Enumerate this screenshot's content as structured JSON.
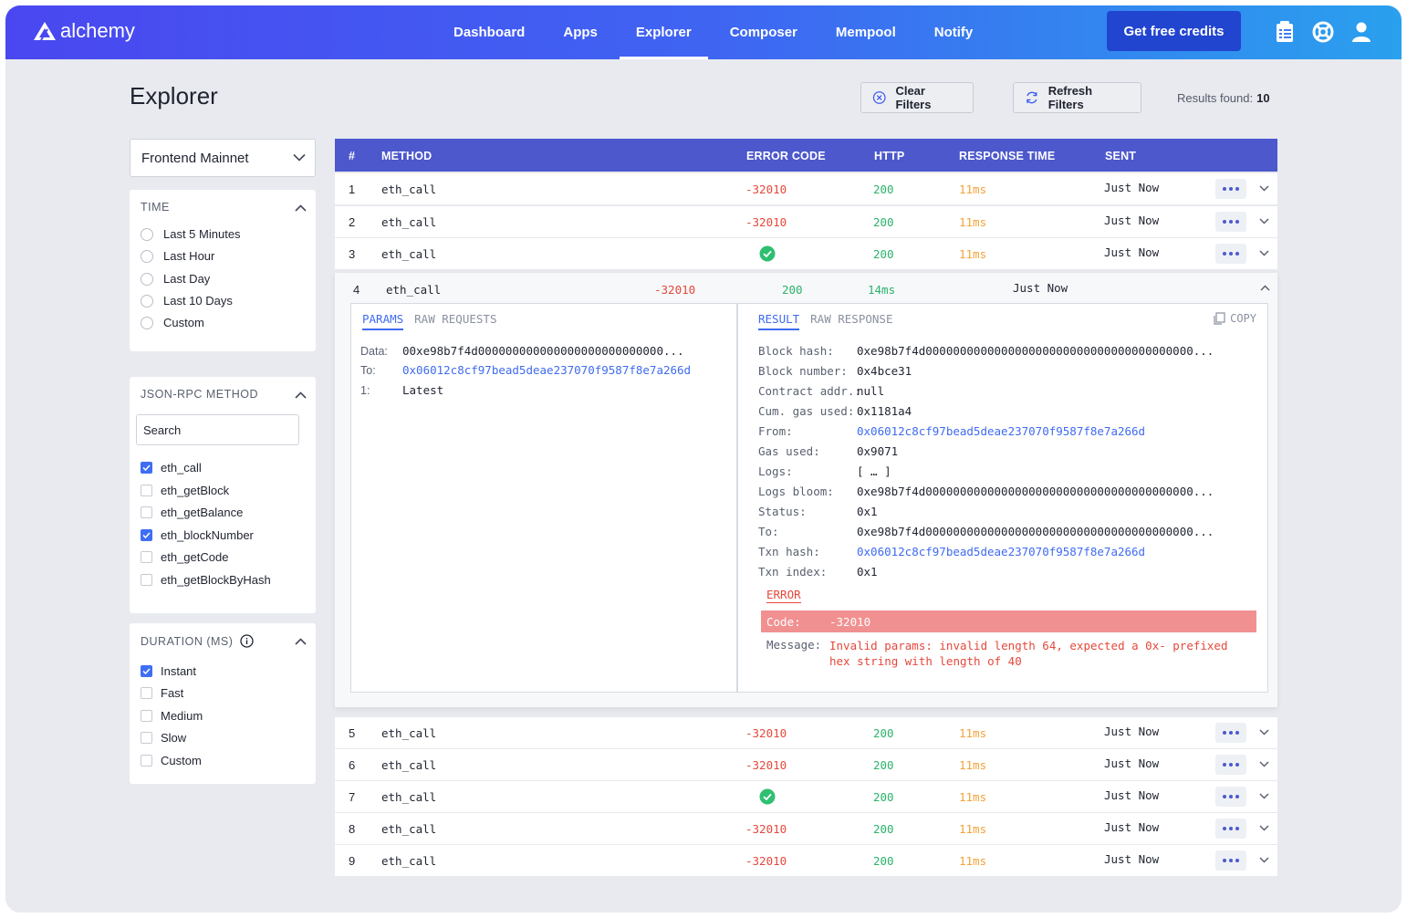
{
  "brand": {
    "name": "alchemy"
  },
  "nav": {
    "items": [
      "Dashboard",
      "Apps",
      "Explorer",
      "Composer",
      "Mempool",
      "Notify"
    ],
    "active": "Explorer",
    "cta": "Get free credits"
  },
  "page": {
    "title": "Explorer",
    "clear_filters": "Clear Filters",
    "refresh_filters": "Refresh Filters",
    "results_label": "Results found:",
    "results_count": "10"
  },
  "filters": {
    "network": "Frontend Mainnet",
    "time": {
      "title": "TIME",
      "options": [
        "Last 5 Minutes",
        "Last Hour",
        "Last Day",
        "Last 10 Days",
        "Custom"
      ]
    },
    "method": {
      "title": "JSON-RPC METHOD",
      "search_placeholder": "Search",
      "options": [
        {
          "label": "eth_call",
          "checked": true
        },
        {
          "label": "eth_getBlock",
          "checked": false
        },
        {
          "label": "eth_getBalance",
          "checked": false
        },
        {
          "label": "eth_blockNumber",
          "checked": true
        },
        {
          "label": "eth_getCode",
          "checked": false
        },
        {
          "label": "eth_getBlockByHash",
          "checked": false
        }
      ]
    },
    "duration": {
      "title": "DURATION (MS)",
      "options": [
        {
          "label": "Instant",
          "checked": true
        },
        {
          "label": "Fast",
          "checked": false
        },
        {
          "label": "Medium",
          "checked": false
        },
        {
          "label": "Slow",
          "checked": false
        },
        {
          "label": "Custom",
          "checked": false
        }
      ]
    }
  },
  "table": {
    "headers": [
      "#",
      "METHOD",
      "ERROR CODE",
      "HTTP",
      "RESPONSE TIME",
      "SENT"
    ],
    "rows": [
      {
        "num": "1",
        "method": "eth_call",
        "error": "-32010",
        "http": "200",
        "time": "11ms",
        "sent": "Just Now"
      },
      {
        "num": "2",
        "method": "eth_call",
        "error": "-32010",
        "http": "200",
        "time": "11ms",
        "sent": "Just Now"
      },
      {
        "num": "3",
        "method": "eth_call",
        "error": "",
        "http": "200",
        "time": "11ms",
        "sent": "Just Now"
      },
      {
        "num": "4",
        "method": "eth_call",
        "error": "-32010",
        "http": "200",
        "time": "14ms",
        "sent": "Just Now"
      },
      {
        "num": "5",
        "method": "eth_call",
        "error": "-32010",
        "http": "200",
        "time": "11ms",
        "sent": "Just Now"
      },
      {
        "num": "6",
        "method": "eth_call",
        "error": "-32010",
        "http": "200",
        "time": "11ms",
        "sent": "Just Now"
      },
      {
        "num": "7",
        "method": "eth_call",
        "error": "",
        "http": "200",
        "time": "11ms",
        "sent": "Just Now"
      },
      {
        "num": "8",
        "method": "eth_call",
        "error": "-32010",
        "http": "200",
        "time": "11ms",
        "sent": "Just Now"
      },
      {
        "num": "9",
        "method": "eth_call",
        "error": "-32010",
        "http": "200",
        "time": "11ms",
        "sent": "Just Now"
      }
    ]
  },
  "detail": {
    "left_tabs": [
      "PARAMS",
      "RAW REQUESTS"
    ],
    "params": [
      {
        "k": "Data:",
        "v": "00xe98b7f4d000000000000000000000000000..."
      },
      {
        "k": "To:",
        "v": "0x06012c8cf97bead5deae237070f9587f8e7a266d"
      },
      {
        "k": "1:",
        "v": "Latest"
      }
    ],
    "right_tabs": [
      "RESULT",
      "RAW RESPONSE"
    ],
    "copy": "COPY",
    "result": [
      {
        "k": "Block hash:",
        "v": "0xe98b7f4d000000000000000000000000000000000000000..."
      },
      {
        "k": "Block number:",
        "v": "0x4bce31"
      },
      {
        "k": "Contract addr.:",
        "v": "null"
      },
      {
        "k": "Cum. gas used:",
        "v": "0x1181a4"
      },
      {
        "k": "From:",
        "v": "0x06012c8cf97bead5deae237070f9587f8e7a266d"
      },
      {
        "k": "Gas used:",
        "v": "0x9071"
      },
      {
        "k": "Logs:",
        "v": "[ … ]"
      },
      {
        "k": "Logs bloom:",
        "v": "0xe98b7f4d000000000000000000000000000000000000000..."
      },
      {
        "k": "Status:",
        "v": "0x1"
      },
      {
        "k": "To:",
        "v": "0xe98b7f4d000000000000000000000000000000000000000..."
      },
      {
        "k": "Txn hash:",
        "v": "0x06012c8cf97bead5deae237070f9587f8e7a266d"
      },
      {
        "k": "Txn index:",
        "v": "0x1"
      }
    ],
    "error_title": "ERROR",
    "error_code_label": "Code:",
    "error_code": "-32010",
    "error_message_label": "Message:",
    "error_message_1": "Invalid params: invalid length 64, expected a 0x- prefixed",
    "error_message_2": "hex string with length of 40"
  },
  "colors": {
    "accent": "#3f6bf0",
    "header": "#4c58cc",
    "error": "#e5483b",
    "success": "#2ab36b",
    "warning": "#f2a33a"
  }
}
